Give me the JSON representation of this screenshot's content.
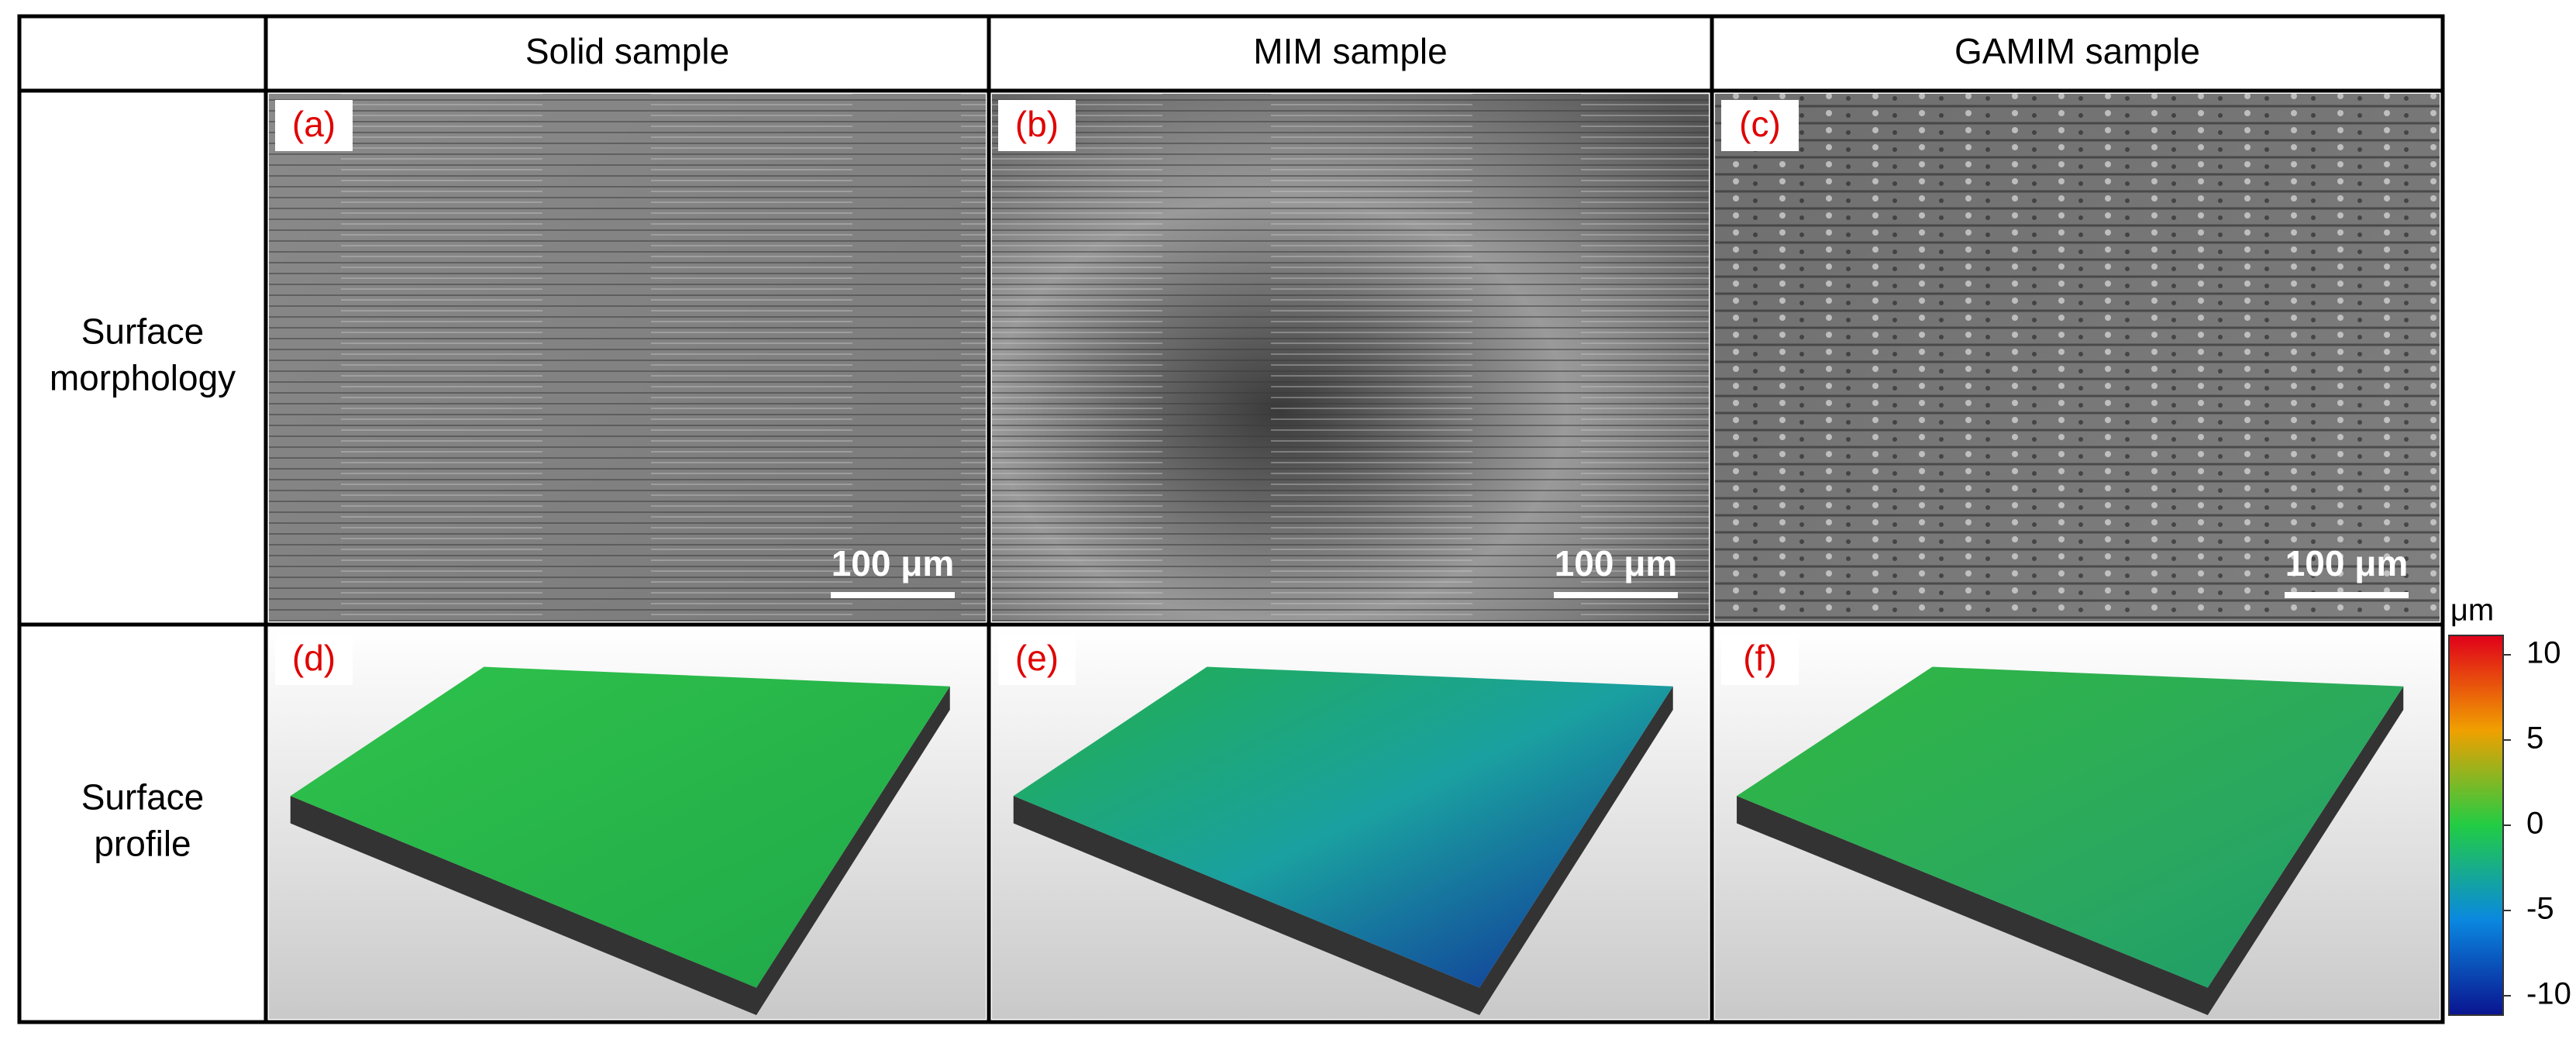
{
  "table": {
    "header": [
      "Solid sample",
      "MIM sample",
      "GAMIM sample"
    ],
    "rows": [
      {
        "label": [
          "Surface",
          "morphology"
        ],
        "panels": [
          {
            "label": "(a)",
            "scale_bar": "100 μm"
          },
          {
            "label": "(b)",
            "scale_bar": "100 μm"
          },
          {
            "label": "(c)",
            "scale_bar": "100 μm"
          }
        ]
      },
      {
        "label": [
          "Surface",
          "profile"
        ],
        "panels": [
          {
            "label": "(d)"
          },
          {
            "label": "(e)"
          },
          {
            "label": "(f)"
          }
        ]
      }
    ]
  },
  "colorbar": {
    "unit": "μm",
    "ticks": [
      10,
      5,
      0,
      -5,
      -10
    ]
  }
}
